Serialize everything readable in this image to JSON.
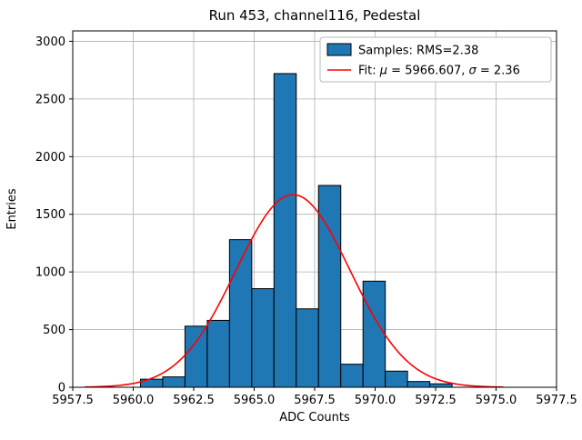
{
  "figure": {
    "title": "Run 453, channel116, Pedestal",
    "xlabel": "ADC Counts",
    "ylabel": "Entries"
  },
  "legend": {
    "samples_label": "Samples: RMS=2.38",
    "fit_label": "Fit: μ = 5966.607, σ = 2.36",
    "fit_label_parts": [
      {
        "text": "Fit: ",
        "italic": false
      },
      {
        "text": "μ",
        "italic": true
      },
      {
        "text": " = 5966.607, ",
        "italic": false
      },
      {
        "text": "σ",
        "italic": true
      },
      {
        "text": " = 2.36",
        "italic": false
      }
    ]
  },
  "chart_data": {
    "type": "bar",
    "subtype": "histogram",
    "title": "Run 453, channel116, Pedestal",
    "xlabel": "ADC Counts",
    "ylabel": "Entries",
    "xlim": [
      5957.5,
      5977.5
    ],
    "ylim": [
      0,
      3090
    ],
    "grid": true,
    "legend_position": "upper right",
    "x_ticks": {
      "values": [
        5957.5,
        5960.0,
        5962.5,
        5965.0,
        5967.5,
        5970.0,
        5972.5,
        5975.0,
        5977.5
      ],
      "labels": [
        "5957.5",
        "5960.0",
        "5962.5",
        "5965.0",
        "5967.5",
        "5970.0",
        "5972.5",
        "5975.0",
        "5977.5"
      ]
    },
    "y_ticks": {
      "values": [
        0,
        500,
        1000,
        1500,
        2000,
        2500,
        3000
      ],
      "labels": [
        "0",
        "500",
        "1000",
        "1500",
        "2000",
        "2500",
        "3000"
      ]
    },
    "histogram": {
      "rms": 2.38,
      "bin_edges": [
        5960.3,
        5961.22,
        5962.14,
        5963.06,
        5963.98,
        5964.9,
        5965.82,
        5966.74,
        5967.66,
        5968.58,
        5969.5,
        5970.42,
        5971.34,
        5972.26,
        5973.18
      ],
      "counts": [
        70,
        90,
        530,
        580,
        1280,
        855,
        2720,
        680,
        1750,
        200,
        920,
        140,
        50,
        30
      ]
    },
    "fit": {
      "type": "gaussian",
      "mu": 5966.607,
      "sigma": 2.36,
      "amplitude": 1670,
      "x_range": [
        5958.0,
        5975.3
      ]
    },
    "colors": {
      "bar_fill": "#1f77b4",
      "bar_edge": "#000000",
      "fit_line": "#ff0000",
      "grid": "#b0b0b0",
      "spine": "#000000",
      "legend_edge": "#b9b9b9",
      "legend_face": "#ffffff"
    }
  }
}
